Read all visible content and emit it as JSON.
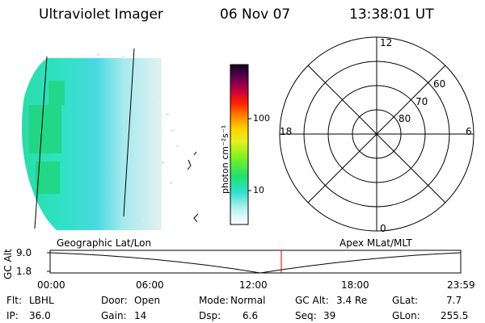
{
  "header": {
    "instrument": "Ultraviolet Imager",
    "date": "06 Nov 07",
    "time": "13:38:01 UT"
  },
  "colorbar": {
    "unit_label": "photon cm⁻²s⁻¹",
    "ticks": [
      "100",
      "10"
    ]
  },
  "polar": {
    "mlt_labels": [
      "12",
      "18",
      "6",
      "0"
    ],
    "lat_labels": [
      "60",
      "70",
      "80"
    ]
  },
  "timeline": {
    "left_title": "Geographic Lat/Lon",
    "right_title": "Apex MLat/MLT",
    "y_axis_label": "GC Alt",
    "y_ticks": [
      "9.0",
      "1.8"
    ],
    "x_ticks": [
      "00:00",
      "06:00",
      "12:00",
      "18:00",
      "23:59"
    ],
    "marker_color": "#cc0000"
  },
  "info": {
    "flt": {
      "label": "Flt:",
      "value": "LBHL"
    },
    "ip": {
      "label": "IP:",
      "value": "36.0"
    },
    "door": {
      "label": "Door:",
      "value": "Open"
    },
    "gain": {
      "label": "Gain:",
      "value": "14"
    },
    "mode": {
      "label": "Mode:",
      "value": "Normal"
    },
    "dsp": {
      "label": "Dsp:",
      "value": "6.6"
    },
    "gcalt": {
      "label": "GC Alt:",
      "value": "3.4 Re"
    },
    "seq": {
      "label": "Seq:",
      "value": "39"
    },
    "glat": {
      "label": "GLat:",
      "value": "7.7"
    },
    "glon": {
      "label": "GLon:",
      "value": "255.5"
    }
  }
}
